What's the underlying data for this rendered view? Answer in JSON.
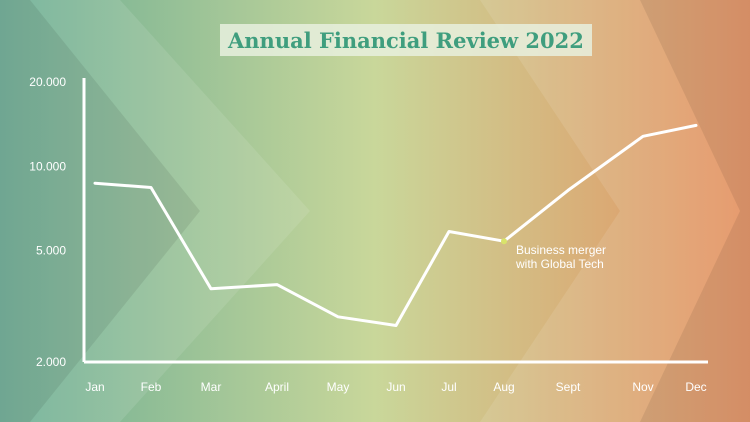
{
  "title": "Annual Financial Review 2022",
  "colors": {
    "bg_left": "#6aad94",
    "bg_mid": "#c9d79a",
    "bg_right": "#e58f5e",
    "line": "#ffffff",
    "title_text": "#3f9e7e",
    "marker": "#d9e36b"
  },
  "chart_data": {
    "type": "line",
    "title": "Annual Financial Review 2022",
    "xlabel": "",
    "ylabel": "",
    "yscale": "log",
    "ylim": [
      2000,
      20000
    ],
    "grid": false,
    "categories": [
      "Jan",
      "Feb",
      "Mar",
      "April",
      "May",
      "Jun",
      "Jul",
      "Aug",
      "Sept",
      "Nov",
      "Dec"
    ],
    "y_ticks": [
      {
        "label": "20.000",
        "value": 20000
      },
      {
        "label": "10.000",
        "value": 10000
      },
      {
        "label": "5.000",
        "value": 5000
      },
      {
        "label": "2.000",
        "value": 2000
      }
    ],
    "series": [
      {
        "values": [
          8700,
          8400,
          3650,
          3780,
          2900,
          2700,
          5850,
          5400,
          8200,
          12800,
          14000
        ]
      }
    ],
    "annotations": [
      {
        "category": "Aug",
        "value": 5400,
        "lines": [
          "Business merger",
          "with Global Tech"
        ]
      }
    ]
  }
}
